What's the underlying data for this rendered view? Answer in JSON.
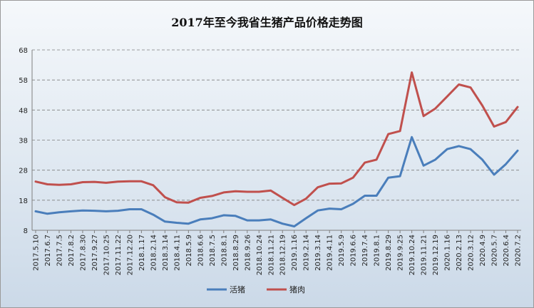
{
  "chart_data": {
    "type": "line",
    "title": "2017年至今我省生猪产品价格走势图",
    "xlabel": "",
    "ylabel": "",
    "ylim": [
      8,
      68
    ],
    "yticks": [
      8,
      18,
      28,
      38,
      48,
      58,
      68
    ],
    "grid": true,
    "legend_position": "bottom",
    "x": [
      "2017.5.10",
      "2017.6.7",
      "2017.7.5",
      "2017.8.2",
      "2017.8.30",
      "2017.9.27",
      "2017.10.25",
      "2017.11.22",
      "2017.12.20",
      "2018.1.17",
      "2018.2.14",
      "2018.3.14",
      "2018.4.11",
      "2018.5.9",
      "2018.6.6",
      "2018.7.5",
      "2018.8.1",
      "2018.8.29",
      "2018.9.26",
      "2018.10.24",
      "2018.11.21",
      "2018.12.19",
      "2019.1.16",
      "2019.2.14",
      "2019.3.14",
      "2019.4.11",
      "2019.5.9",
      "2019.6.6",
      "2019.7.4",
      "2019.8.1",
      "2019.8.29",
      "2019.9.25",
      "2019.10.24",
      "2019.11.21",
      "2019.12.19",
      "2020.1.16",
      "2020.2.13",
      "2020.3.12",
      "2020.4.9",
      "2020.5.7",
      "2020.6.4",
      "2020.7.2"
    ],
    "series": [
      {
        "name": "活猪",
        "color": "#4a7ebb",
        "values": [
          14.3,
          13.5,
          14.0,
          14.3,
          14.6,
          14.5,
          14.3,
          14.5,
          15.0,
          15.0,
          13.2,
          10.9,
          10.5,
          10.2,
          11.6,
          12.0,
          13.0,
          12.8,
          11.3,
          11.3,
          11.6,
          10.2,
          9.3,
          12.0,
          14.6,
          15.2,
          15.0,
          16.8,
          19.5,
          19.5,
          25.5,
          26.0,
          39.0,
          29.5,
          31.5,
          35.0,
          36.0,
          35.0,
          31.5,
          26.5,
          30.0,
          34.5
        ]
      },
      {
        "name": "猪肉",
        "color": "#c0504d",
        "values": [
          24.2,
          23.3,
          23.1,
          23.3,
          24.0,
          24.1,
          23.8,
          24.2,
          24.3,
          24.3,
          23.0,
          19.0,
          17.3,
          17.2,
          18.8,
          19.4,
          20.6,
          21.0,
          20.8,
          20.8,
          21.2,
          18.8,
          16.4,
          18.5,
          22.3,
          23.5,
          23.6,
          25.5,
          30.5,
          31.5,
          40.0,
          41.0,
          60.5,
          46.0,
          48.5,
          52.5,
          56.5,
          55.5,
          49.5,
          42.5,
          44.0,
          49.0
        ]
      }
    ]
  }
}
